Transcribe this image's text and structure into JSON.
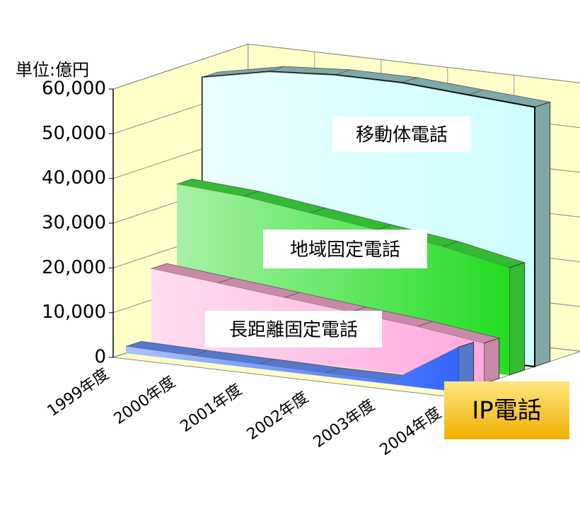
{
  "chart_data": {
    "type": "area3d",
    "unit_label": "単位:億円",
    "categories": [
      "1999年度",
      "2000年度",
      "2001年度",
      "2002年度",
      "2003年度",
      "2004年度"
    ],
    "series": [
      {
        "name": "移動体電話",
        "color": "#ccffff",
        "top_color": "#7fa8a8",
        "values": [
          56000,
          59000,
          60000,
          60000,
          59000,
          58000
        ]
      },
      {
        "name": "地域固定電話",
        "color": "#22dd22",
        "top_color": "#33bb33",
        "values": [
          34000,
          33000,
          31000,
          29000,
          27000,
          24000
        ]
      },
      {
        "name": "長距離固定電話",
        "color": "#ffaadd",
        "top_color": "#c98aa8",
        "values": [
          17000,
          15500,
          14000,
          12500,
          11000,
          9000
        ]
      },
      {
        "name": "IP電話",
        "color": "#3366ff",
        "top_color": "#5577cc",
        "values": [
          1500,
          1200,
          1000,
          800,
          800,
          10000
        ]
      }
    ],
    "ylim": [
      0,
      60000
    ],
    "yticks": [
      0,
      {
        "value": 10000,
        "label": "10,000"
      },
      {
        "value": 20000,
        "label": "20,000"
      },
      {
        "value": 30000,
        "label": "30,000"
      },
      {
        "value": 40000,
        "label": "40,000"
      },
      {
        "value": 50000,
        "label": "50,000"
      },
      {
        "value": 60000,
        "label": "60,000"
      }
    ],
    "grid": true
  }
}
